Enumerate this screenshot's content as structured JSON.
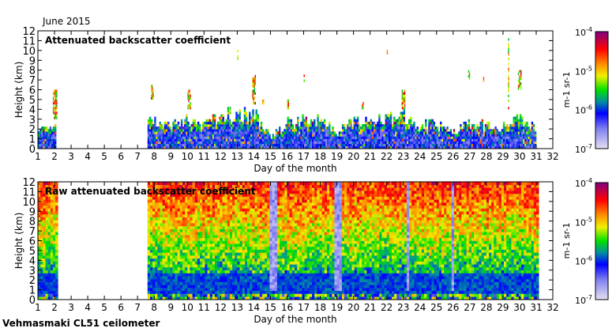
{
  "header": {
    "date_label": "June 2015"
  },
  "footer": {
    "station_label": "Vehmasmaki CL51 ceilometer"
  },
  "chart_data": [
    {
      "type": "heatmap",
      "title": "Attenuated backscatter coefficient",
      "xlabel": "Day of the month",
      "ylabel": "Height (km)",
      "xlim": [
        1,
        32
      ],
      "ylim": [
        0,
        12
      ],
      "xticks": [
        1,
        2,
        3,
        4,
        5,
        6,
        7,
        8,
        9,
        10,
        11,
        12,
        13,
        14,
        15,
        16,
        17,
        18,
        19,
        20,
        21,
        22,
        23,
        24,
        25,
        26,
        27,
        28,
        29,
        30,
        31,
        32
      ],
      "yticks": [
        0,
        1,
        2,
        3,
        4,
        5,
        6,
        7,
        8,
        9,
        10,
        11,
        12
      ],
      "data_gaps": [
        [
          2.1,
          7.5
        ],
        [
          31.0,
          32.0
        ]
      ],
      "boundary_layer_km": [
        [
          1,
          1.6
        ],
        [
          1.5,
          2.0
        ],
        [
          2,
          2.5
        ],
        [
          7.5,
          3.0
        ],
        [
          8,
          2.6
        ],
        [
          8.5,
          2.2
        ],
        [
          9,
          2.4
        ],
        [
          9.5,
          2.6
        ],
        [
          10,
          2.8
        ],
        [
          10.5,
          2.5
        ],
        [
          11,
          2.3
        ],
        [
          11.5,
          2.8
        ],
        [
          12,
          3.0
        ],
        [
          12.5,
          3.4
        ],
        [
          13,
          3.5
        ],
        [
          13.5,
          3.2
        ],
        [
          14,
          3.6
        ],
        [
          14.5,
          2.0
        ],
        [
          15,
          1.2
        ],
        [
          15.5,
          1.8
        ],
        [
          16,
          2.6
        ],
        [
          16.5,
          2.4
        ],
        [
          17,
          3.0
        ],
        [
          17.5,
          2.6
        ],
        [
          18,
          3.0
        ],
        [
          18.5,
          2.2
        ],
        [
          19,
          1.4
        ],
        [
          19.5,
          2.4
        ],
        [
          20,
          2.8
        ],
        [
          20.5,
          2.6
        ],
        [
          21,
          2.6
        ],
        [
          21.5,
          3.0
        ],
        [
          22,
          2.8
        ],
        [
          22.5,
          3.0
        ],
        [
          23,
          3.4
        ],
        [
          23.5,
          2.4
        ],
        [
          24,
          2.0
        ],
        [
          24.5,
          2.6
        ],
        [
          25,
          2.2
        ],
        [
          25.5,
          2.0
        ],
        [
          26,
          1.5
        ],
        [
          26.5,
          2.0
        ],
        [
          27,
          2.4
        ],
        [
          27.5,
          2.2
        ],
        [
          28,
          2.4
        ],
        [
          28.5,
          2.0
        ],
        [
          29,
          2.3
        ],
        [
          29.5,
          2.6
        ],
        [
          30,
          2.8
        ],
        [
          30.5,
          2.4
        ],
        [
          31,
          2.0
        ]
      ],
      "cloud_layers_km": [
        [
          1.9,
          2.1,
          3.0,
          6.0
        ],
        [
          7.8,
          7.9,
          5.0,
          6.5
        ],
        [
          10.0,
          10.2,
          4.0,
          6.0
        ],
        [
          11.4,
          11.5,
          5.5,
          6.0
        ],
        [
          12.5,
          12.6,
          3.5,
          4.2
        ],
        [
          13.0,
          13.05,
          8.8,
          10.0
        ],
        [
          13.9,
          14.1,
          4.5,
          7.3
        ],
        [
          14.5,
          14.6,
          4.5,
          5.0
        ],
        [
          16.0,
          16.1,
          4.0,
          4.8
        ],
        [
          17.0,
          17.05,
          6.8,
          7.4
        ],
        [
          20.5,
          20.6,
          4.0,
          4.8
        ],
        [
          22.0,
          22.05,
          9.6,
          10.0
        ],
        [
          22.9,
          23.1,
          4.0,
          5.8
        ],
        [
          26.9,
          27.0,
          7.0,
          8.0
        ],
        [
          27.8,
          27.85,
          6.8,
          7.3
        ],
        [
          29.3,
          29.35,
          4.0,
          11.8
        ],
        [
          29.9,
          30.1,
          6.0,
          7.8
        ]
      ],
      "colorbar": {
        "label": "m-1 sr-1",
        "min": 1e-07,
        "max": 0.0001,
        "scale": "log",
        "tick_labels": [
          "10",
          "10",
          "10",
          "10"
        ],
        "tick_exponents": [
          "-4",
          "-5",
          "-6",
          "-7"
        ]
      }
    },
    {
      "type": "heatmap",
      "title": "Raw attenuated backscatter coefficient",
      "xlabel": "Day of the month",
      "ylabel": "Height (km)",
      "xlim": [
        1,
        32
      ],
      "ylim": [
        0,
        12
      ],
      "xticks": [
        1,
        2,
        3,
        4,
        5,
        6,
        7,
        8,
        9,
        10,
        11,
        12,
        13,
        14,
        15,
        16,
        17,
        18,
        19,
        20,
        21,
        22,
        23,
        24,
        25,
        26,
        27,
        28,
        29,
        30,
        31,
        32
      ],
      "yticks": [
        0,
        1,
        2,
        3,
        4,
        5,
        6,
        7,
        8,
        9,
        10,
        11,
        12
      ],
      "data_gaps": [
        [
          2.1,
          7.5
        ],
        [
          31.0,
          32.0
        ]
      ],
      "clear_stripes_day": [
        15.0,
        15.2,
        18.9,
        19.1,
        23.2,
        25.9
      ],
      "colorbar": {
        "label": "m-1 sr-1",
        "min": 1e-07,
        "max": 0.0001,
        "scale": "log",
        "tick_labels": [
          "10",
          "10",
          "10",
          "10"
        ],
        "tick_exponents": [
          "-4",
          "-5",
          "-6",
          "-7"
        ]
      }
    }
  ]
}
